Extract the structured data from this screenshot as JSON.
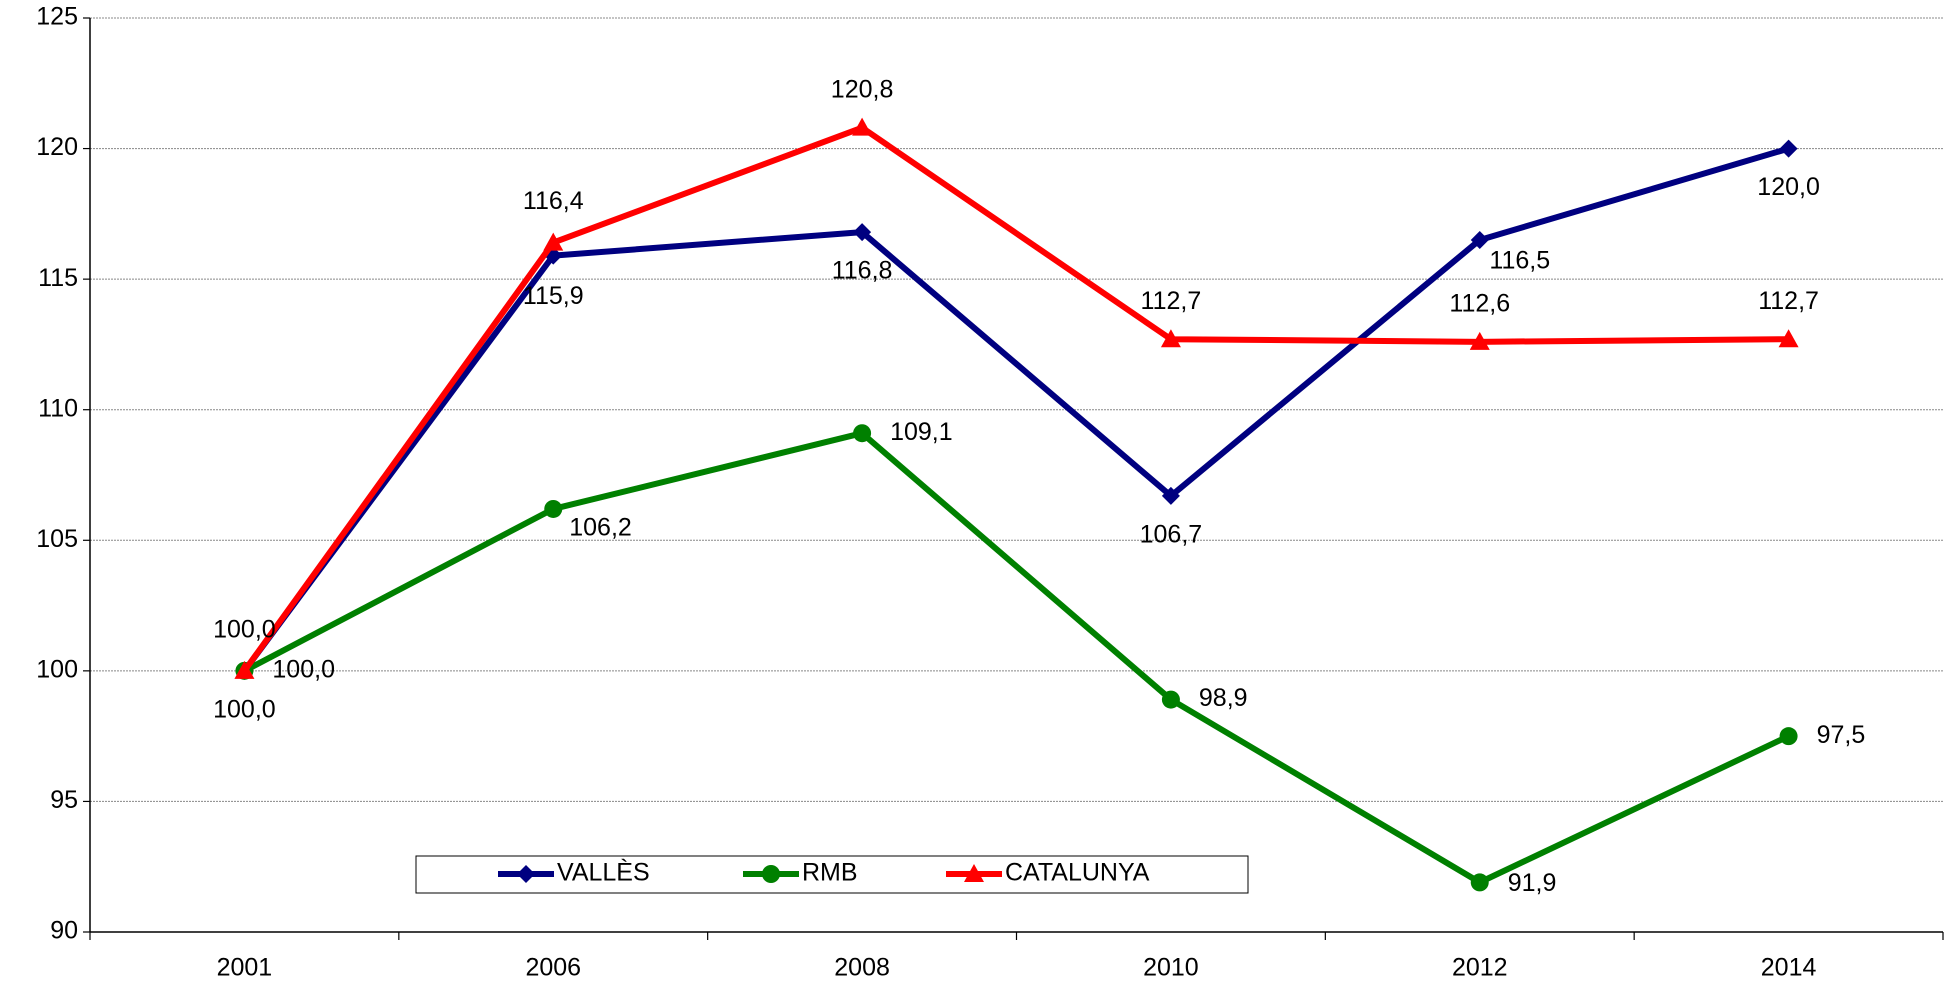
{
  "chart_data": {
    "type": "line",
    "categories": [
      "2001",
      "2006",
      "2008",
      "2010",
      "2012",
      "2014"
    ],
    "series": [
      {
        "name": "VALLÈS",
        "color": "#000080",
        "marker": "diamond",
        "values": [
          100.0,
          115.9,
          116.8,
          106.7,
          116.5,
          120.0
        ],
        "value_labels": [
          "100,0",
          "115,9",
          "116,8",
          "106,7",
          "116,5",
          "120,0"
        ]
      },
      {
        "name": "RMB",
        "color": "#008000",
        "marker": "circle",
        "values": [
          100.0,
          106.2,
          109.1,
          98.9,
          91.9,
          97.5
        ],
        "value_labels": [
          "100,0",
          "106,2",
          "109,1",
          "98,9",
          "91,9",
          "97,5"
        ]
      },
      {
        "name": "CATALUNYA",
        "color": "#ff0000",
        "marker": "triangle",
        "values": [
          100.0,
          116.4,
          120.8,
          112.7,
          112.6,
          112.7
        ],
        "value_labels": [
          "100,0",
          "116,4",
          "120,8",
          "112,7",
          "112,6",
          "112,7"
        ]
      }
    ],
    "ylim": [
      90,
      125
    ],
    "yticks": [
      90,
      95,
      100,
      105,
      110,
      115,
      120,
      125
    ],
    "grid": true,
    "legend": "bottom"
  }
}
